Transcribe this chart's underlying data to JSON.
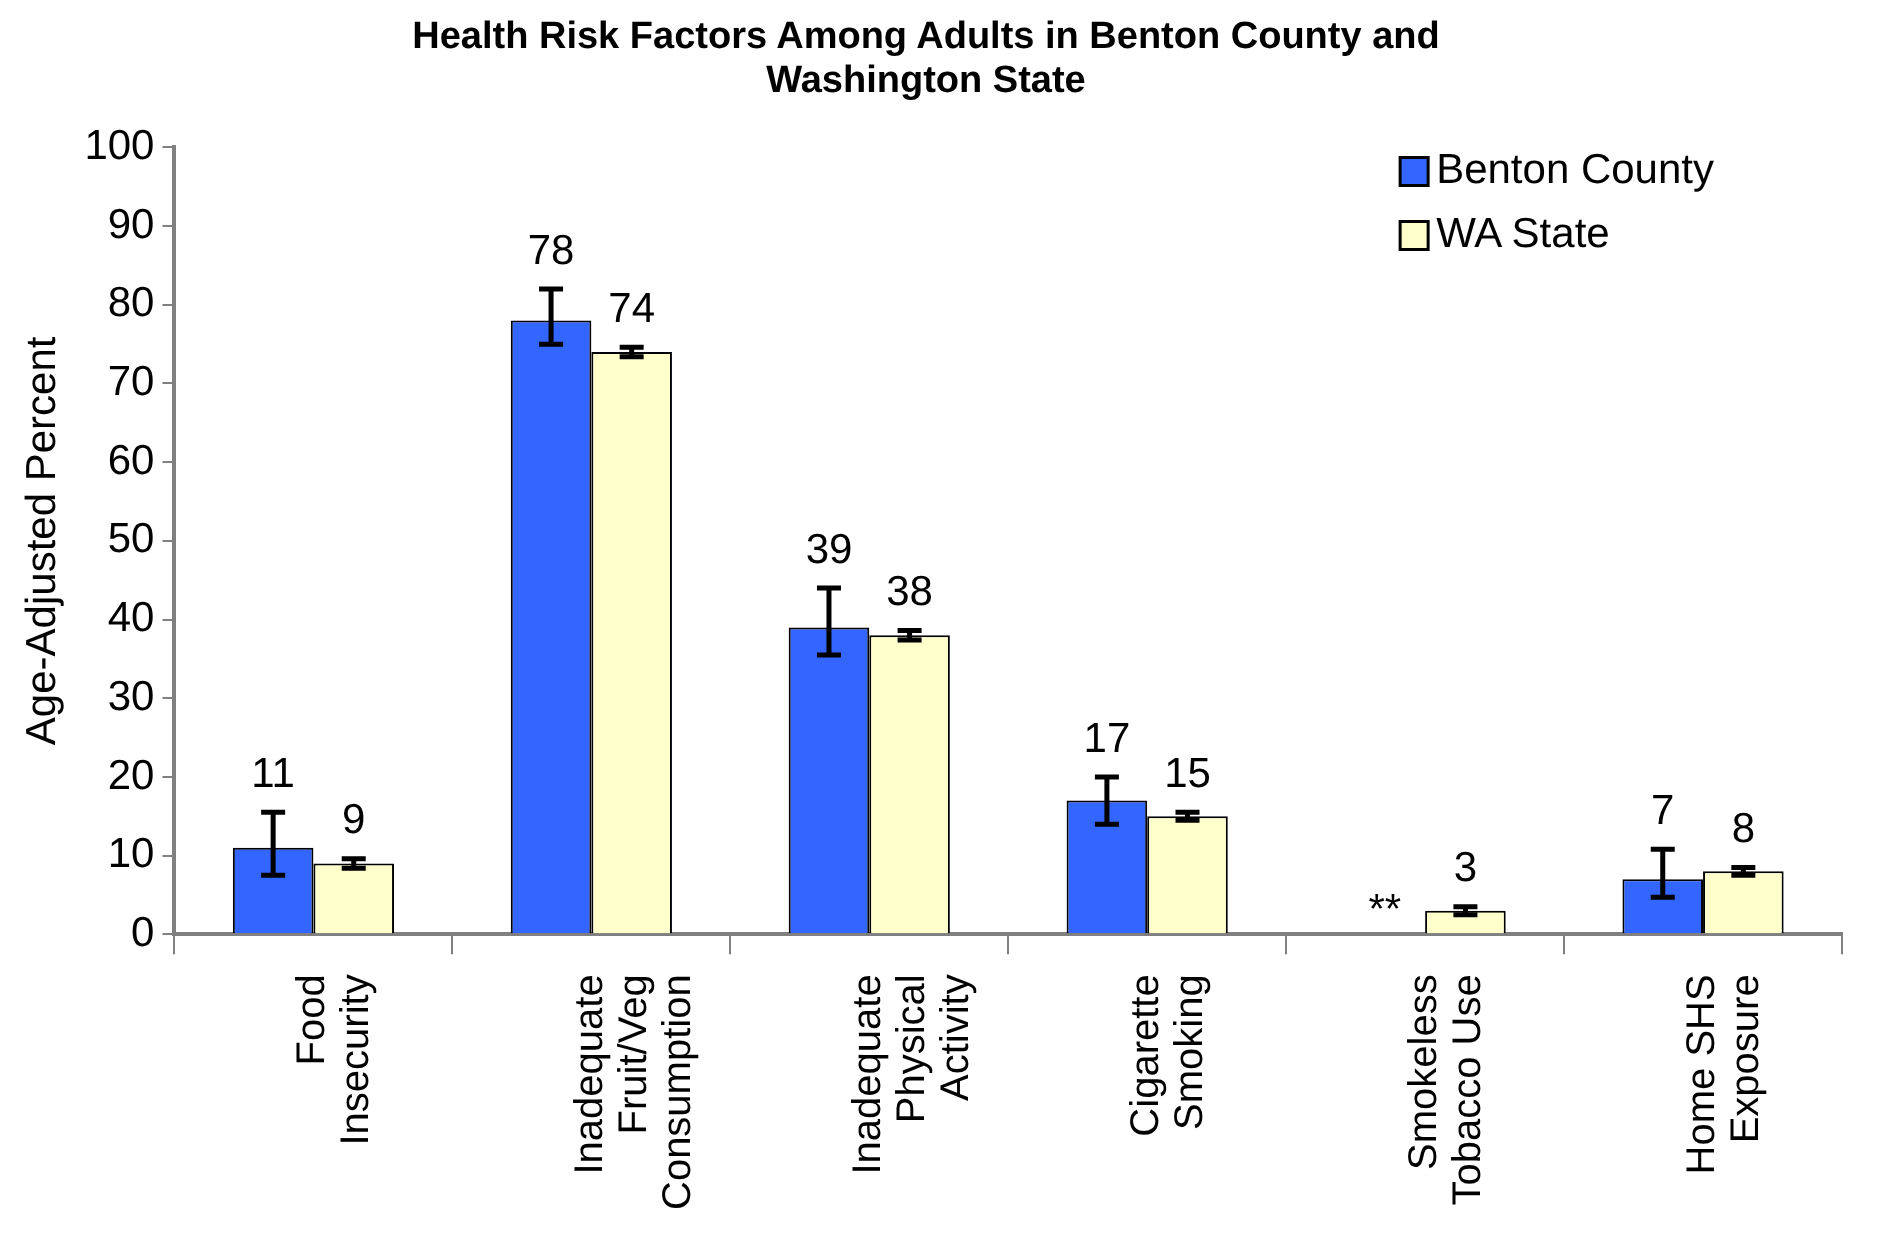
{
  "chart_data": {
    "type": "bar",
    "title": "Health Risk Factors Among Adults in Benton County and Washington State",
    "ylabel": "Age-Adjusted Percent",
    "categories": [
      "Food Insecurity",
      "Inadequate Fruit/Veg Consumption",
      "Inadequate Physical Activity",
      "Cigarette Smoking",
      "Smokeless Tobacco Use",
      "Home SHS Exposure"
    ],
    "series": [
      {
        "name": "Benton County",
        "color": "#3366ff",
        "values": [
          11,
          78,
          39,
          17,
          null,
          7
        ],
        "errors": [
          [
            7.5,
            15.5
          ],
          [
            75,
            82
          ],
          [
            35.5,
            44
          ],
          [
            14,
            20
          ],
          null,
          [
            4.7,
            10.8
          ]
        ],
        "value_labels": [
          "11",
          "78",
          "39",
          "17",
          "**",
          "7"
        ]
      },
      {
        "name": "WA State",
        "color": "#ffffcc",
        "values": [
          9,
          74,
          38,
          15,
          3,
          8
        ],
        "errors": [
          0.6,
          0.6,
          0.6,
          0.5,
          0.5,
          0.5
        ],
        "value_labels": [
          "9",
          "74",
          "38",
          "15",
          "3",
          "8"
        ]
      }
    ],
    "ylim": [
      0,
      100
    ],
    "yticks": [
      0,
      10,
      20,
      30,
      40,
      50,
      60,
      70,
      80,
      90,
      100
    ],
    "grid": false,
    "legend": "top right"
  }
}
